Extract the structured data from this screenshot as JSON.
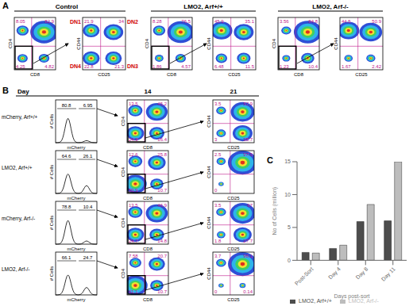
{
  "figure": {
    "A": {
      "label": "A",
      "columns": [
        {
          "title": "Control",
          "plots": [
            {
              "x_label": "CD8",
              "y_label": "CD4",
              "quadrants": {
                "tl": 8.05,
                "tr": 82.9,
                "bl": 4.25,
                "br": 4.82
              }
            },
            {
              "x_label": "CD25",
              "y_label": "CD44",
              "quadrants": {
                "tl": 21.9,
                "tr": 34,
                "bl": 22.8,
                "br": 21.3
              },
              "dn_labels": {
                "tl": "DN1",
                "tr": "DN2",
                "bl": "DN4",
                "br": "DN3"
              }
            }
          ]
        },
        {
          "title": "LMO2, Arf+/+",
          "plots": [
            {
              "x_label": "CD8",
              "y_label": "CD4",
              "quadrants": {
                "tl": 8.28,
                "tr": 76.5,
                "bl": 1.86,
                "br": 4.57
              }
            },
            {
              "x_label": "CD25",
              "y_label": "CD44",
              "quadrants": {
                "tl": 45.9,
                "tr": 35.1,
                "bl": 6.48,
                "br": 11.5
              }
            }
          ]
        },
        {
          "title": "LMO2, Arf-/-",
          "plots": [
            {
              "x_label": "CD8",
              "y_label": "CD4",
              "quadrants": {
                "tl": 3.56,
                "tr": 84.8,
                "bl": 1.23,
                "br": 10.4
              }
            },
            {
              "x_label": "CD25",
              "y_label": "CD44",
              "quadrants": {
                "tl": 44.5,
                "tr": 50.9,
                "bl": 1.67,
                "br": 2.42
              }
            }
          ]
        }
      ]
    },
    "B": {
      "label": "B",
      "day_label": "Day",
      "days": [
        "14",
        "21"
      ],
      "rows": [
        {
          "name": "mCherry, Arf+/+",
          "histogram": {
            "x_label": "mCherry",
            "y_label": "# Cells",
            "gates": [
              80.8,
              6.95
            ]
          },
          "day14": {
            "x_label": "CD8",
            "y_label": "CD4",
            "quadrants": {
              "tl": 13.5,
              "tr": 45.2,
              "bl": 24.9,
              "br": 16.4
            }
          },
          "day21": {
            "x_label": "CD25",
            "y_label": "CD44",
            "quadrants": {
              "tl": 3.5,
              "tr": 57.9,
              "bl": 3,
              "br": 35.7
            }
          }
        },
        {
          "name": "LMO2, Arf+/+",
          "histogram": {
            "x_label": "mCherry",
            "y_label": "# Cells",
            "gates": [
              64.6,
              26.1
            ]
          },
          "day14": {
            "x_label": "CD8",
            "y_label": "CD4",
            "quadrants": {
              "tl": 12.6,
              "tr": 25.8,
              "bl": 50.9,
              "br": 10.7
            }
          },
          "day21": {
            "x_label": "CD25",
            "y_label": "CD44",
            "quadrants": {
              "tl": 2.5,
              "tr": 97.5,
              "bl": 0
            }
          }
        },
        {
          "name": "mCherry, Arf-/-",
          "histogram": {
            "x_label": "mCherry",
            "y_label": "# Cells",
            "gates": [
              78.8,
              10.4
            ]
          },
          "day14": {
            "x_label": "CD8",
            "y_label": "CD4",
            "quadrants": {
              "tl": 13.5,
              "tr": 46.9,
              "bl": 24.7,
              "br": 14.8
            }
          },
          "day21": {
            "x_label": "CD25",
            "y_label": "CD44",
            "quadrants": {
              "tl": 3.5,
              "tr": 67,
              "bl": 1.8,
              "br": 27.7
            }
          }
        },
        {
          "name": "LMO2, Arf-/-",
          "histogram": {
            "x_label": "mCherry",
            "y_label": "# Cells",
            "gates": [
              66.1,
              24.7
            ]
          },
          "day14": {
            "x_label": "CD8",
            "y_label": "CD4",
            "quadrants": {
              "tl": 7.58,
              "tr": 20.7,
              "bl": 61.1,
              "br": 10.7
            }
          },
          "day21": {
            "x_label": "CD25",
            "y_label": "CD44",
            "quadrants": {
              "tl": 3.7,
              "tr": 96.1,
              "bl": 0,
              "br": 0.14
            }
          }
        }
      ]
    },
    "C": {
      "label": "C"
    }
  },
  "chart_data": {
    "type": "bar",
    "y_label": "No of Cells (million)",
    "x_label": "Days post-sort",
    "categories": [
      "Post-Sort",
      "Day 4",
      "Day 8",
      "Day 11"
    ],
    "series": [
      {
        "name": "LMO2, Arf+/+",
        "color": "#4d4d4d",
        "values": [
          1.2,
          1.8,
          5.9,
          6.0
        ]
      },
      {
        "name": "LMO2, Arf-/-",
        "color": "#bdbdbd",
        "values": [
          1.1,
          2.3,
          8.5,
          15
        ]
      }
    ],
    "ylim": [
      0,
      15
    ],
    "yticks": [
      0,
      5,
      10,
      15
    ],
    "legend": "bottom"
  }
}
